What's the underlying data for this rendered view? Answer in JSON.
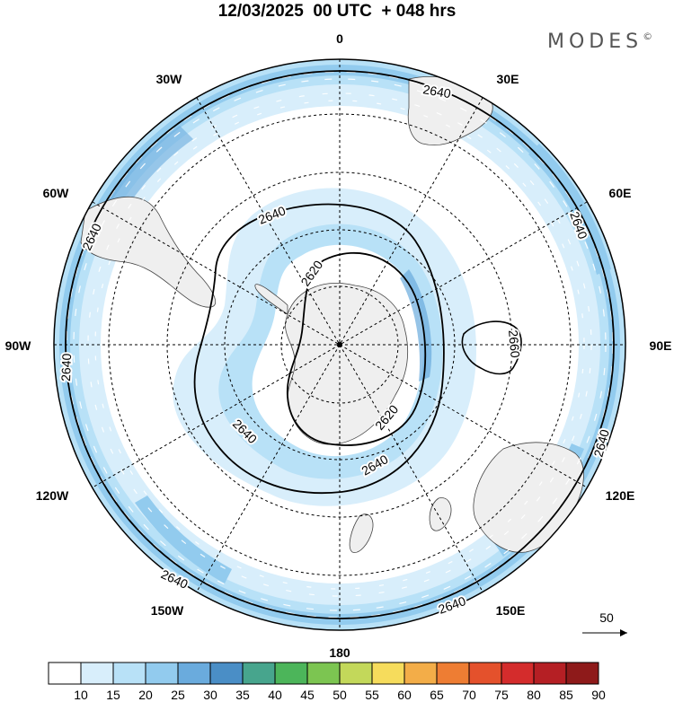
{
  "title": "12/03/2025  00 UTC  + 048 hrs",
  "brand": "MODES",
  "brand_mark": "©",
  "longitude_labels": {
    "lon_0": "0",
    "lon_30e": "30E",
    "lon_60e": "60E",
    "lon_90e": "90E",
    "lon_120e": "120E",
    "lon_150e": "150E",
    "lon_180": "180",
    "lon_150w": "150W",
    "lon_120w": "120W",
    "lon_90w": "90W",
    "lon_60w": "60W",
    "lon_30w": "30W"
  },
  "contour_labels": {
    "c2640_a": "2640",
    "c2640_b": "2640",
    "c2640_c": "2640",
    "c2640_d": "2640",
    "c2640_e": "2640",
    "c2640_f": "2640",
    "c2640_g": "2640",
    "c2640_h": "2640",
    "c2620_a": "2620",
    "c2620_b": "2620",
    "c2660": "2660"
  },
  "reference_vector": "50",
  "colorbar": {
    "levels": [
      "10",
      "15",
      "20",
      "25",
      "30",
      "35",
      "40",
      "45",
      "50",
      "55",
      "60",
      "65",
      "70",
      "75",
      "80",
      "85",
      "90"
    ],
    "colors": [
      "#ffffff",
      "#d8eefb",
      "#b8e1f7",
      "#92cbee",
      "#6aabdd",
      "#4a8ec6",
      "#47a58d",
      "#4cb55a",
      "#7cc551",
      "#c3d85a",
      "#f6dc5c",
      "#f3ad48",
      "#ee7d33",
      "#e4512c",
      "#d42c2c",
      "#b51f24",
      "#8e1a1a"
    ]
  },
  "colors": {
    "land": "#efefef",
    "ocean": "#ffffff",
    "wind_light": "#d8eefb",
    "wind_medium": "#b8e1f7",
    "wind_strong": "#92cbee",
    "wind_max": "#6aabdd"
  }
}
